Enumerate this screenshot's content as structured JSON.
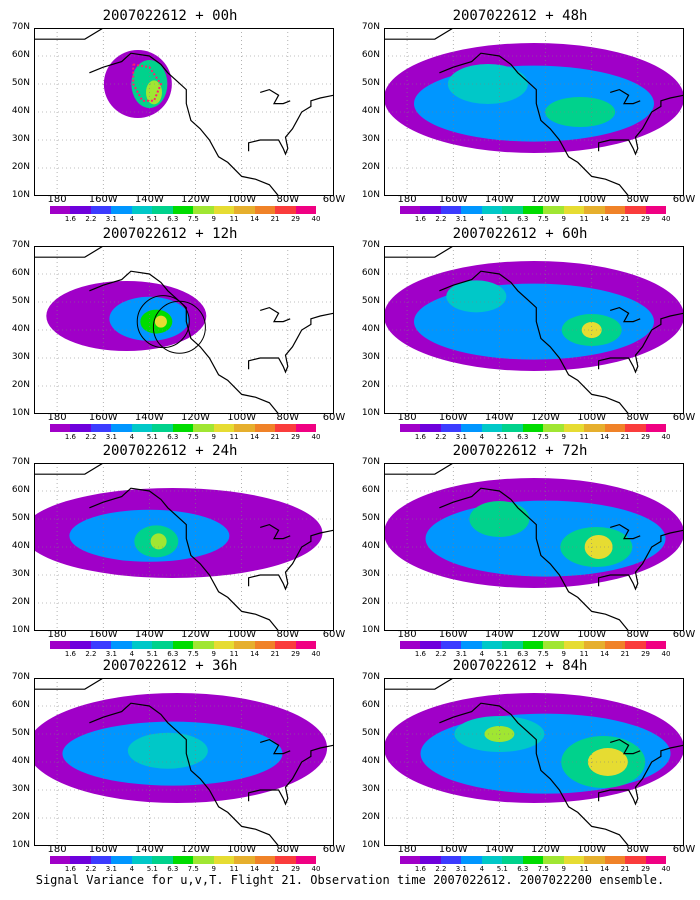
{
  "figure": {
    "caption": "Signal Variance for u,v,T. Flight 21. Observation time 2007022612. 2007022200 ensemble."
  },
  "axes": {
    "lat_ticks": [
      "70N",
      "60N",
      "50N",
      "40N",
      "30N",
      "20N",
      "10N"
    ],
    "lon_ticks": [
      "180",
      "160W",
      "140W",
      "120W",
      "100W",
      "80W",
      "60W"
    ]
  },
  "colorbar": {
    "labels": [
      "1.6",
      "2.2",
      "3.1",
      "4",
      "5.1",
      "6.3",
      "7.5",
      "9",
      "11",
      "14",
      "21",
      "29",
      "40"
    ],
    "colors": [
      "#a000c8",
      "#6e00dc",
      "#3c3cff",
      "#0096ff",
      "#00c8c8",
      "#00d28c",
      "#00dc00",
      "#a0e632",
      "#e6dc32",
      "#e6af2d",
      "#f08228",
      "#fa3c3c",
      "#f00082"
    ]
  },
  "panels": [
    {
      "title": "2007022612 + 00h"
    },
    {
      "title": "2007022612 + 48h"
    },
    {
      "title": "2007022612 + 12h"
    },
    {
      "title": "2007022612 + 60h"
    },
    {
      "title": "2007022612 + 24h"
    },
    {
      "title": "2007022612 + 72h"
    },
    {
      "title": "2007022612 + 36h"
    },
    {
      "title": "2007022612 + 84h"
    }
  ]
}
